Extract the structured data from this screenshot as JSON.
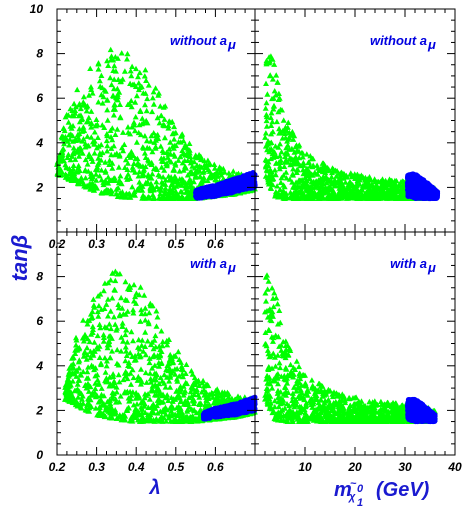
{
  "figure": {
    "ylabel_base": "tan",
    "ylabel_greek": "β",
    "xlabel_left": "λ",
    "xlabel_right_base": "m",
    "xlabel_right_sym": "χ",
    "xlabel_right_tilde": "~",
    "xlabel_right_sup": "0",
    "xlabel_right_sub": "1",
    "xlabel_right_unit": "(GeV)"
  },
  "colors": {
    "green_points": "#00ff00",
    "blue_points": "#0000ff",
    "annotation": "#0000e0",
    "axis_label": "#1a1ad0"
  },
  "chart_data": [
    {
      "type": "scatter",
      "panel": "top-left",
      "annotation": "without a",
      "annotation_sub": "μ",
      "xlim": [
        0.2,
        0.7
      ],
      "ylim": [
        0,
        10
      ],
      "xticks": [
        "0.2",
        "0.3",
        "0.4",
        "0.5",
        "0.6"
      ],
      "yticks": [
        "2",
        "4",
        "6",
        "8",
        "10"
      ],
      "series": [
        {
          "marker": "triangle",
          "color": "#00ff00",
          "x_range": [
            0.2,
            0.7
          ],
          "envelope_x": [
            0.2,
            0.25,
            0.3,
            0.35,
            0.4,
            0.45,
            0.5,
            0.55,
            0.6,
            0.65,
            0.7
          ],
          "envelope_ylow": [
            2.6,
            2.2,
            1.8,
            1.6,
            1.5,
            1.5,
            1.5,
            1.5,
            1.6,
            1.7,
            1.9
          ],
          "envelope_yhigh": [
            4.2,
            6.5,
            7.8,
            8.4,
            8.0,
            6.5,
            4.8,
            3.6,
            3.0,
            2.7,
            2.6
          ]
        },
        {
          "marker": "dot",
          "color": "#0000ff",
          "x_range": [
            0.55,
            0.7
          ],
          "envelope_x": [
            0.55,
            0.6,
            0.65,
            0.7
          ],
          "envelope_ylow": [
            1.5,
            1.6,
            1.8,
            2.0
          ],
          "envelope_yhigh": [
            1.9,
            2.1,
            2.4,
            2.7
          ]
        }
      ]
    },
    {
      "type": "scatter",
      "panel": "top-right",
      "annotation": "without a",
      "annotation_sub": "μ",
      "xlim": [
        0,
        40
      ],
      "ylim": [
        0,
        10
      ],
      "series": [
        {
          "marker": "triangle",
          "color": "#00ff00",
          "x_range": [
            2,
            36
          ],
          "envelope_x": [
            2,
            4,
            6,
            10,
            15,
            20,
            25,
            30,
            34,
            36
          ],
          "envelope_ylow": [
            2.5,
            1.6,
            1.5,
            1.5,
            1.5,
            1.5,
            1.5,
            1.5,
            1.5,
            1.6
          ],
          "envelope_yhigh": [
            8.3,
            7.6,
            5.2,
            3.6,
            2.9,
            2.6,
            2.4,
            2.3,
            2.2,
            2.0
          ]
        },
        {
          "marker": "dot",
          "color": "#0000ff",
          "x_range": [
            30.5,
            36.5
          ],
          "envelope_x": [
            30.5,
            32,
            34,
            36.5
          ],
          "envelope_ylow": [
            1.6,
            1.5,
            1.5,
            1.5
          ],
          "envelope_yhigh": [
            2.6,
            2.6,
            2.3,
            1.8
          ]
        }
      ]
    },
    {
      "type": "scatter",
      "panel": "bottom-left",
      "annotation": "with a",
      "annotation_sub": "μ",
      "xlim": [
        0.2,
        0.7
      ],
      "ylim": [
        0,
        10
      ],
      "xticks": [
        "0.2",
        "0.3",
        "0.4",
        "0.5",
        "0.6"
      ],
      "yticks": [
        "0",
        "2",
        "4",
        "6",
        "8"
      ],
      "series": [
        {
          "marker": "triangle",
          "color": "#00ff00",
          "x_range": [
            0.22,
            0.7
          ],
          "envelope_x": [
            0.22,
            0.25,
            0.3,
            0.35,
            0.4,
            0.45,
            0.5,
            0.55,
            0.6,
            0.65,
            0.7
          ],
          "envelope_ylow": [
            2.5,
            2.2,
            1.8,
            1.6,
            1.5,
            1.5,
            1.5,
            1.5,
            1.6,
            1.7,
            1.9
          ],
          "envelope_yhigh": [
            3.0,
            5.5,
            7.5,
            8.4,
            8.0,
            6.5,
            4.8,
            3.6,
            3.0,
            2.7,
            2.5
          ]
        },
        {
          "marker": "dot",
          "color": "#0000ff",
          "x_range": [
            0.57,
            0.7
          ],
          "envelope_x": [
            0.57,
            0.6,
            0.65,
            0.7
          ],
          "envelope_ylow": [
            1.6,
            1.7,
            1.8,
            2.0
          ],
          "envelope_yhigh": [
            1.9,
            2.1,
            2.3,
            2.6
          ]
        }
      ]
    },
    {
      "type": "scatter",
      "panel": "bottom-right",
      "annotation": "with a",
      "annotation_sub": "μ",
      "xlim": [
        0,
        40
      ],
      "ylim": [
        0,
        10
      ],
      "xticks": [
        "10",
        "20",
        "30",
        "40"
      ],
      "series": [
        {
          "marker": "triangle",
          "color": "#00ff00",
          "x_range": [
            2,
            36
          ],
          "envelope_x": [
            2,
            4,
            6,
            10,
            15,
            20,
            25,
            30,
            34,
            36
          ],
          "envelope_ylow": [
            2.5,
            1.6,
            1.5,
            1.5,
            1.5,
            1.5,
            1.5,
            1.5,
            1.5,
            1.6
          ],
          "envelope_yhigh": [
            8.3,
            7.6,
            5.2,
            3.6,
            2.9,
            2.6,
            2.4,
            2.3,
            2.2,
            2.0
          ]
        },
        {
          "marker": "dot",
          "color": "#0000ff",
          "x_range": [
            30.5,
            36
          ],
          "envelope_x": [
            30.5,
            32,
            34,
            36
          ],
          "envelope_ylow": [
            1.6,
            1.5,
            1.5,
            1.5
          ],
          "envelope_yhigh": [
            2.5,
            2.5,
            2.2,
            1.8
          ]
        }
      ]
    }
  ]
}
